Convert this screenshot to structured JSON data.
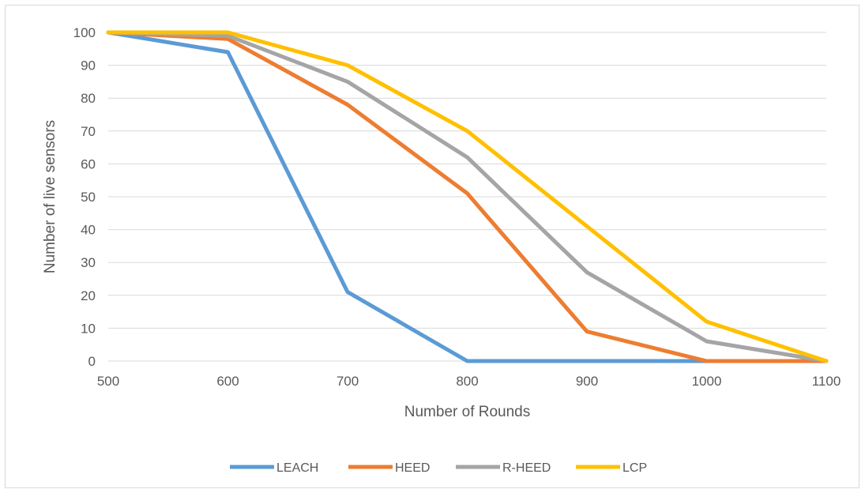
{
  "chart_data": {
    "type": "line",
    "title": "",
    "xlabel": "Number of Rounds",
    "ylabel": "Number of live sensors",
    "x": [
      500,
      600,
      700,
      800,
      900,
      1000,
      1100
    ],
    "xlim": [
      500,
      1100
    ],
    "ylim": [
      0,
      100
    ],
    "x_ticks": [
      "500",
      "600",
      "700",
      "800",
      "900",
      "1000",
      "1100"
    ],
    "y_ticks": [
      "0",
      "10",
      "20",
      "30",
      "40",
      "50",
      "60",
      "70",
      "80",
      "90",
      "100"
    ],
    "grid": "horizontal",
    "legend_position": "bottom",
    "series": [
      {
        "name": "LEACH",
        "color": "#5b9bd5",
        "values": [
          100,
          94,
          21,
          0,
          0,
          0,
          0
        ]
      },
      {
        "name": "HEED",
        "color": "#ed7d31",
        "values": [
          100,
          98,
          78,
          51,
          9,
          0,
          0
        ]
      },
      {
        "name": "R-HEED",
        "color": "#a5a5a5",
        "values": [
          100,
          99,
          85,
          62,
          27,
          6,
          0
        ]
      },
      {
        "name": "LCP",
        "color": "#ffc000",
        "values": [
          100,
          100,
          90,
          70,
          41,
          12,
          0
        ]
      }
    ]
  }
}
